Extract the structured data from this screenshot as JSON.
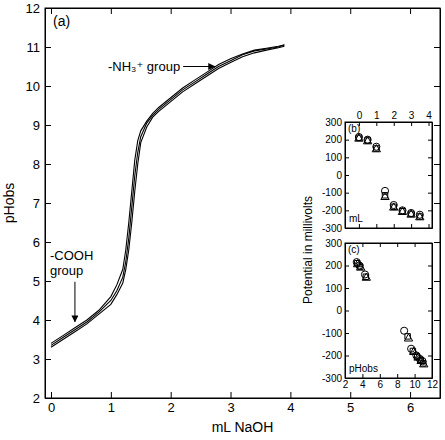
{
  "chart_data": [
    {
      "type": "line",
      "panel_label": "(a)",
      "xlabel": "mL NaOH",
      "ylabel": "pHobs",
      "xlim": [
        -0.1,
        6.5
      ],
      "ylim": [
        2,
        12
      ],
      "xticks": [
        0,
        1,
        2,
        3,
        4,
        5,
        6
      ],
      "yticks": [
        2,
        3,
        4,
        5,
        6,
        7,
        8,
        9,
        10,
        11,
        12
      ],
      "annotations": [
        {
          "text": [
            "-NH₃⁺ group"
          ]
        },
        {
          "text": [
            "-COOH",
            "group"
          ]
        }
      ],
      "series": [
        {
          "color": "#000000",
          "line_style": "solid",
          "x": [
            0,
            0.2,
            0.4,
            0.6,
            0.8,
            1.0,
            1.1,
            1.2,
            1.25,
            1.3,
            1.35,
            1.4,
            1.45,
            1.5,
            1.6,
            1.7,
            1.8,
            2.0,
            2.2,
            2.4,
            2.6,
            2.8,
            3.0,
            3.2,
            3.4,
            3.6,
            3.8,
            3.9
          ],
          "values": [
            3.35,
            3.55,
            3.75,
            3.95,
            4.2,
            4.5,
            4.75,
            5.1,
            5.5,
            6.1,
            6.9,
            7.7,
            8.3,
            8.7,
            9.05,
            9.25,
            9.4,
            9.65,
            9.9,
            10.1,
            10.3,
            10.5,
            10.65,
            10.8,
            10.9,
            10.95,
            11.0,
            11.05
          ]
        },
        {
          "color": "#000000",
          "line_style": "solid",
          "x": [
            0,
            0.2,
            0.4,
            0.6,
            0.8,
            1.0,
            1.1,
            1.2,
            1.25,
            1.3,
            1.35,
            1.4,
            1.45,
            1.5,
            1.6,
            1.7,
            1.8,
            2.0,
            2.2,
            2.4,
            2.6,
            2.8,
            3.0,
            3.2,
            3.4,
            3.6,
            3.8,
            3.9
          ],
          "values": [
            3.3,
            3.5,
            3.7,
            3.9,
            4.15,
            4.4,
            4.65,
            4.95,
            5.3,
            5.8,
            6.5,
            7.3,
            8.0,
            8.55,
            8.95,
            9.2,
            9.35,
            9.6,
            9.85,
            10.05,
            10.25,
            10.45,
            10.6,
            10.75,
            10.85,
            10.92,
            10.98,
            11.02
          ]
        },
        {
          "color": "#000000",
          "line_style": "solid",
          "x": [
            0,
            0.2,
            0.4,
            0.6,
            0.8,
            1.0,
            1.1,
            1.2,
            1.25,
            1.3,
            1.35,
            1.4,
            1.45,
            1.5,
            1.6,
            1.7,
            1.8,
            2.0,
            2.2,
            2.4,
            2.6,
            2.8,
            3.0,
            3.2,
            3.4,
            3.6,
            3.8,
            3.9
          ],
          "values": [
            3.4,
            3.6,
            3.8,
            4.0,
            4.25,
            4.6,
            4.9,
            5.3,
            5.8,
            6.5,
            7.3,
            8.1,
            8.6,
            8.85,
            9.1,
            9.3,
            9.45,
            9.7,
            9.95,
            10.15,
            10.35,
            10.55,
            10.7,
            10.82,
            10.92,
            10.97,
            11.02,
            11.06
          ]
        }
      ]
    },
    {
      "type": "scatter",
      "panel_label": "(b)",
      "xlabel": "mL",
      "ylabel": "Potential in millivolts",
      "xlim": [
        -0.8,
        4.2
      ],
      "ylim": [
        -300,
        300
      ],
      "xticks": [
        0,
        1,
        2,
        3,
        4
      ],
      "yticks": [
        -300,
        -200,
        -100,
        0,
        100,
        200,
        300
      ],
      "series": [
        {
          "marker": "circle",
          "color": "#000000",
          "x": [
            0,
            0.5,
            1.0,
            1.5,
            2.0,
            2.5,
            3.0,
            3.5
          ],
          "values": [
            215,
            200,
            160,
            -90,
            -170,
            -200,
            -215,
            -225
          ]
        },
        {
          "marker": "square",
          "color": "#000000",
          "x": [
            0,
            0.5,
            1.0,
            1.5,
            2.0,
            2.5,
            3.0,
            3.5
          ],
          "values": [
            210,
            195,
            150,
            -115,
            -180,
            -205,
            -220,
            -235
          ]
        },
        {
          "marker": "triangle",
          "color": "#000000",
          "x": [
            0,
            0.5,
            1.0,
            1.5,
            2.0,
            2.5,
            3.0,
            3.5
          ],
          "values": [
            205,
            190,
            145,
            -125,
            -185,
            -210,
            -225,
            -240
          ]
        }
      ]
    },
    {
      "type": "scatter",
      "panel_label": "(c)",
      "xlabel": "pHobs",
      "xlim": [
        2,
        12
      ],
      "ylim": [
        -300,
        300
      ],
      "xticks": [
        2,
        4,
        6,
        8,
        10,
        12
      ],
      "yticks": [
        -300,
        -200,
        -100,
        0,
        100,
        200,
        300
      ],
      "series": [
        {
          "marker": "circle",
          "color": "#000000",
          "x": [
            3.35,
            3.65,
            4.3,
            8.8,
            9.6,
            10.2,
            10.6,
            10.9
          ],
          "values": [
            215,
            200,
            160,
            -90,
            -170,
            -200,
            -215,
            -225
          ]
        },
        {
          "marker": "square",
          "color": "#000000",
          "x": [
            3.4,
            3.75,
            4.4,
            9.2,
            9.8,
            10.3,
            10.7,
            11.0
          ],
          "values": [
            210,
            195,
            150,
            -115,
            -180,
            -205,
            -220,
            -235
          ]
        },
        {
          "marker": "triangle",
          "color": "#000000",
          "x": [
            3.45,
            3.8,
            4.45,
            9.3,
            9.9,
            10.4,
            10.75,
            11.05
          ],
          "values": [
            205,
            190,
            145,
            -125,
            -185,
            -210,
            -225,
            -240
          ]
        }
      ]
    }
  ]
}
